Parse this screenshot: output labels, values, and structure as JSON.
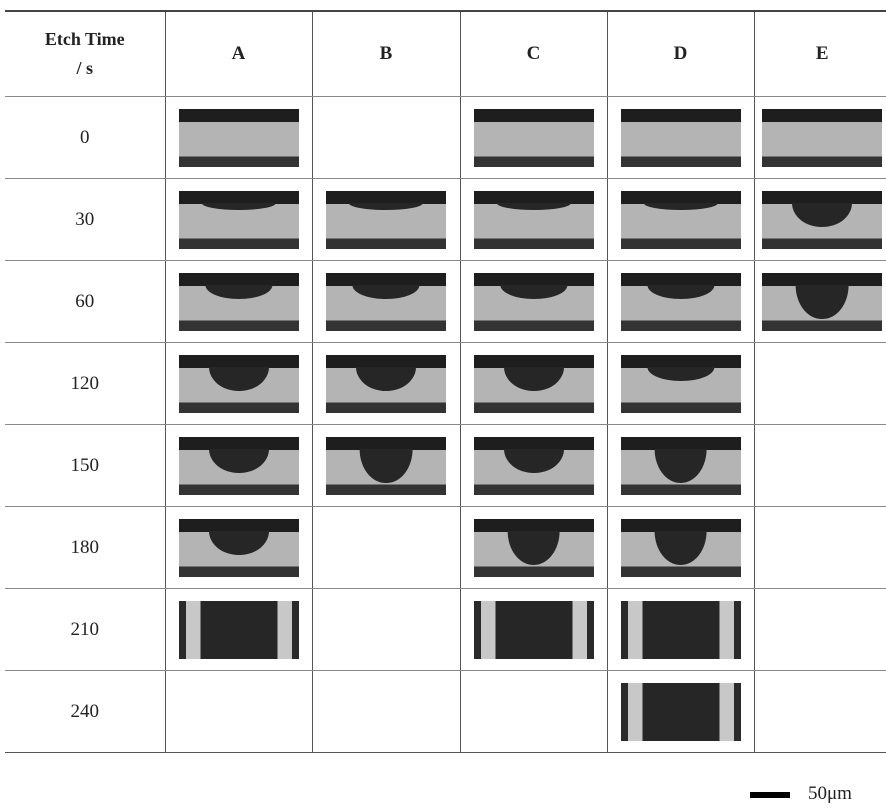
{
  "table": {
    "header": [
      "Etch Time\n/ s",
      "A",
      "B",
      "C",
      "D",
      "E"
    ],
    "rows": [
      [
        "0"
      ],
      [
        "30"
      ],
      [
        "60"
      ],
      [
        "120"
      ],
      [
        "150"
      ],
      [
        "180"
      ],
      [
        "210"
      ],
      [
        "240"
      ]
    ]
  },
  "scale_bar": "50μm"
}
